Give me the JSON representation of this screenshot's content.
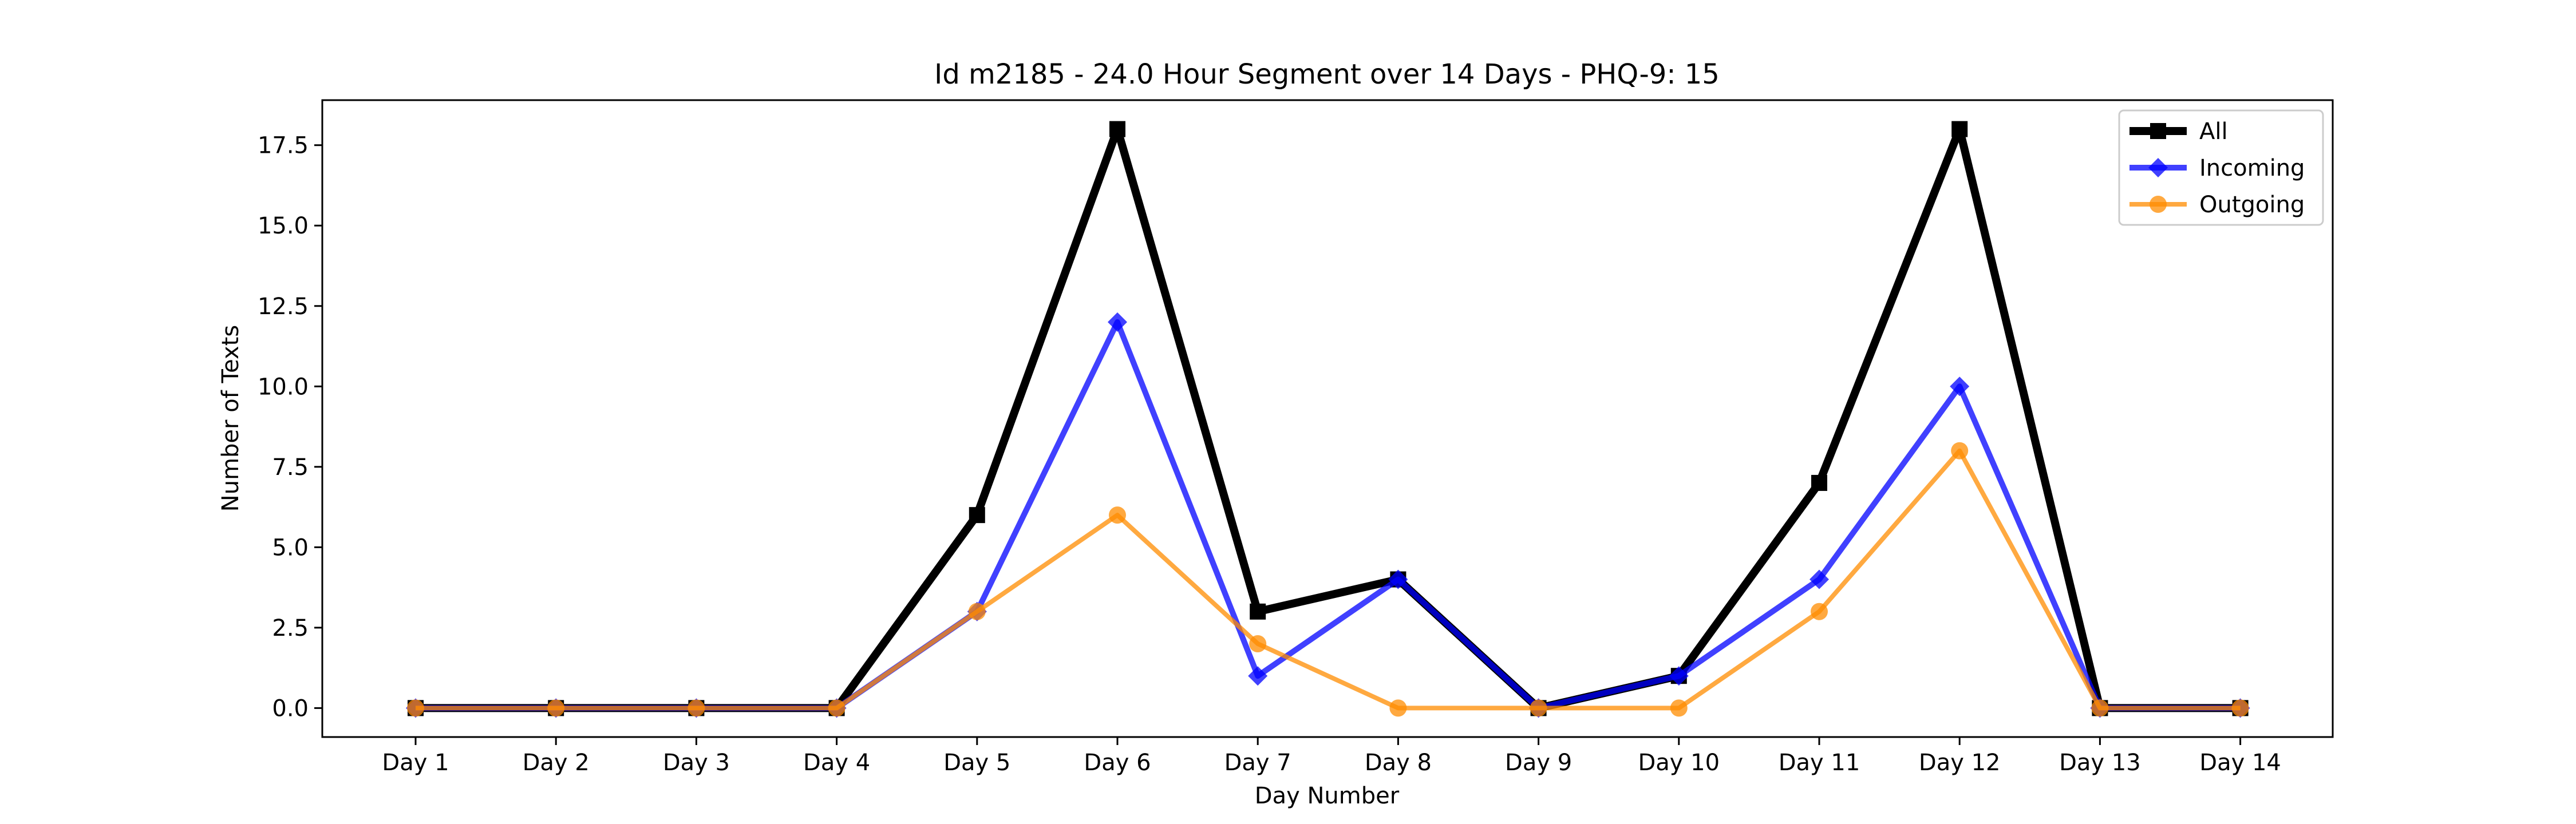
{
  "chart_data": {
    "type": "line",
    "title": "Id m2185 - 24.0 Hour Segment over 14 Days - PHQ-9: 15",
    "xlabel": "Day Number",
    "ylabel": "Number of Texts",
    "categories": [
      "Day 1",
      "Day 2",
      "Day 3",
      "Day 4",
      "Day 5",
      "Day 6",
      "Day 7",
      "Day 8",
      "Day 9",
      "Day 10",
      "Day 11",
      "Day 12",
      "Day 13",
      "Day 14"
    ],
    "ylim": [
      -0.9,
      18.9
    ],
    "yticks": [
      "0.0",
      "2.5",
      "5.0",
      "7.5",
      "10.0",
      "12.5",
      "15.0",
      "17.5"
    ],
    "grid": false,
    "legend_position": "top-right",
    "series": [
      {
        "name": "All",
        "color": "#000000",
        "marker": "square",
        "values": [
          0,
          0,
          0,
          0,
          6,
          18,
          3,
          4,
          0,
          1,
          7,
          18,
          0,
          0
        ]
      },
      {
        "name": "Incoming",
        "color": "#0000ff",
        "marker": "diamond",
        "values": [
          0,
          0,
          0,
          0,
          3,
          12,
          1,
          4,
          0,
          1,
          4,
          10,
          0,
          0
        ]
      },
      {
        "name": "Outgoing",
        "color": "#ff8c00",
        "marker": "circle",
        "values": [
          0,
          0,
          0,
          0,
          3,
          6,
          2,
          0,
          0,
          0,
          3,
          8,
          0,
          0
        ]
      }
    ]
  }
}
